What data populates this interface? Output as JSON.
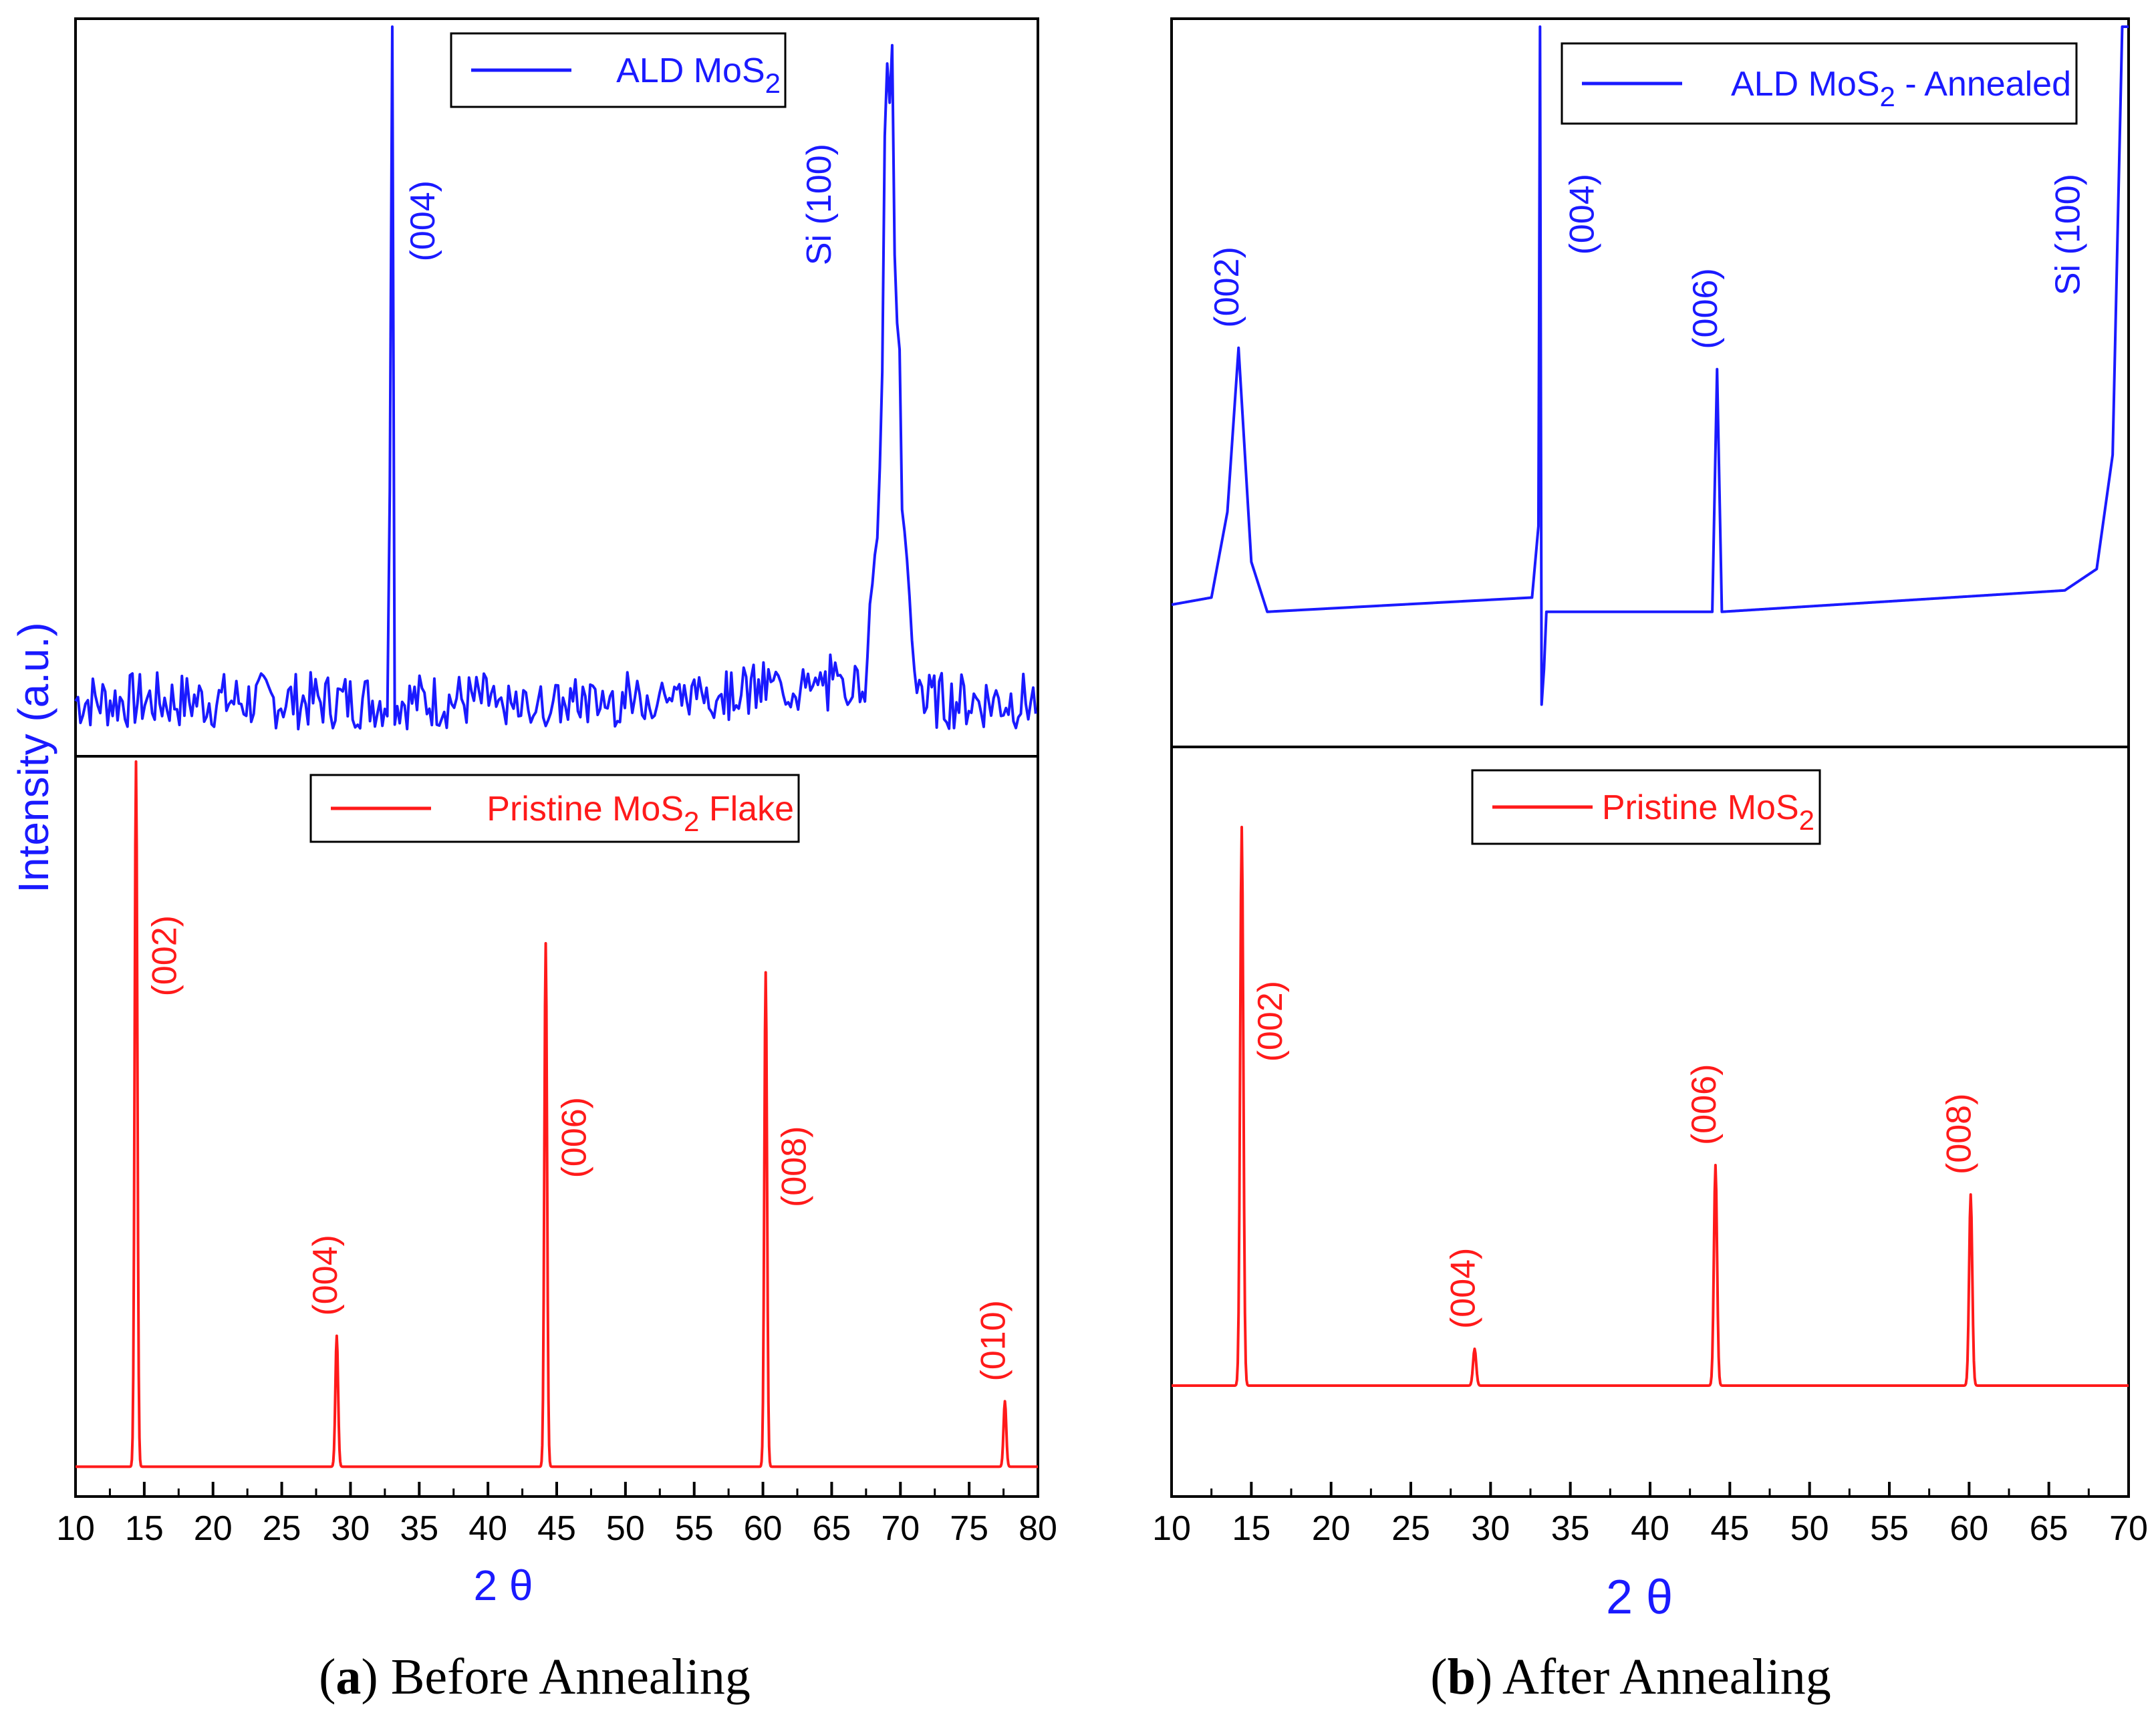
{
  "colors": {
    "blue": "#1a1aff",
    "red": "#ff1a1a",
    "axis": "#000000"
  },
  "panels": [
    {
      "caption_letter": "a",
      "caption_text": ") Before Annealing",
      "xlabel": "2 θ",
      "ylabel": "Intensity (a.u.)",
      "xticks": [
        "10",
        "15",
        "20",
        "25",
        "30",
        "35",
        "40",
        "45",
        "50",
        "55",
        "60",
        "65",
        "70",
        "75",
        "80"
      ]
    },
    {
      "caption_letter": "b",
      "caption_text": ") After Annealing",
      "xlabel": "2 θ",
      "ylabel": "",
      "xticks": [
        "10",
        "15",
        "20",
        "25",
        "30",
        "35",
        "40",
        "45",
        "50",
        "55",
        "60",
        "65",
        "70"
      ]
    }
  ],
  "chart_data": [
    {
      "type": "line",
      "panel": "a",
      "title": "ALD MoS2",
      "legend": {
        "label": "ALD MoS",
        "subscript": "2",
        "color": "#1a1aff",
        "placement": "top-center"
      },
      "xlabel": "2 θ",
      "ylabel": "Intensity (a.u.)",
      "xlim": [
        10,
        80
      ],
      "ylim": [
        0,
        100
      ],
      "baseline": 5,
      "noise": 5,
      "series": [
        {
          "name": "ALD MoS2",
          "x": [
            10,
            32.8,
            32.9,
            33.0,
            33.1,
            33.2,
            67.5,
            68.5,
            69.0,
            69.3,
            69.7,
            70.3,
            71,
            72,
            80
          ],
          "y": [
            5,
            5,
            60,
            100,
            60,
            5,
            10,
            40,
            100,
            100,
            70,
            30,
            12,
            6,
            5
          ]
        }
      ],
      "peaks": [
        {
          "label": "(004)",
          "x": 33.0,
          "y": 100
        },
        {
          "label": "Si (100)",
          "x": 69.3,
          "y": 100
        }
      ]
    },
    {
      "type": "line",
      "panel": "a",
      "title": "Pristine MoS2 Flake",
      "legend": {
        "label": "Pristine MoS",
        "subscript": "2",
        "suffix": " Flake",
        "color": "#ff1a1a",
        "placement": "top-center"
      },
      "xlabel": "2 θ",
      "ylabel": "Intensity (a.u.)",
      "xlim": [
        10,
        80
      ],
      "ylim": [
        0,
        100
      ],
      "baseline": 3,
      "series": [
        {
          "name": "Pristine MoS2 Flake",
          "x": [
            14.4,
            29.0,
            44.2,
            60.2,
            77.6
          ],
          "y": [
            100,
            21,
            75,
            71,
            12
          ]
        }
      ],
      "peaks": [
        {
          "label": "(002)",
          "x": 14.4,
          "y": 100
        },
        {
          "label": "(004)",
          "x": 29.0,
          "y": 21
        },
        {
          "label": "(006)",
          "x": 44.2,
          "y": 75
        },
        {
          "label": "(008)",
          "x": 60.2,
          "y": 71
        },
        {
          "label": "(010)",
          "x": 77.6,
          "y": 12
        }
      ]
    },
    {
      "type": "line",
      "panel": "b",
      "title": "ALD MoS2 - Annealed",
      "legend": {
        "label": "ALD MoS",
        "subscript": "2",
        "suffix": " - Annealed",
        "color": "#1a1aff",
        "placement": "top-right"
      },
      "xlabel": "2 θ",
      "ylabel": "",
      "xlim": [
        10,
        70
      ],
      "ylim": [
        0,
        100
      ],
      "baseline": 18,
      "series": [
        {
          "name": "ALD MoS2 - Annealed",
          "x": [
            10,
            12.5,
            13.5,
            14.2,
            15.0,
            16.0,
            32.6,
            33.0,
            33.1,
            33.2,
            33.35,
            33.5,
            34,
            43.9,
            44.2,
            44.5,
            66,
            68,
            69,
            69.6,
            70
          ],
          "y": [
            19,
            20,
            32,
            55,
            25,
            18,
            20,
            30,
            100,
            5,
            10,
            18,
            18,
            18,
            52,
            18,
            21,
            24,
            40,
            100,
            100
          ]
        }
      ],
      "peaks": [
        {
          "label": "(002)",
          "x": 14.2,
          "y": 55
        },
        {
          "label": "(004)",
          "x": 33.1,
          "y": 100
        },
        {
          "label": "(006)",
          "x": 44.2,
          "y": 52
        },
        {
          "label": "Si (100)",
          "x": 69.6,
          "y": 100
        }
      ]
    },
    {
      "type": "line",
      "panel": "b",
      "title": "Pristine MoS2",
      "legend": {
        "label": "Pristine MoS",
        "subscript": "2",
        "color": "#ff1a1a",
        "placement": "top-center"
      },
      "xlabel": "2 θ",
      "ylabel": "",
      "xlim": [
        10,
        70
      ],
      "ylim": [
        0,
        100
      ],
      "baseline": 14,
      "series": [
        {
          "name": "Pristine MoS2",
          "x": [
            14.4,
            29.0,
            44.1,
            60.1
          ],
          "y": [
            90,
            19,
            44,
            40
          ]
        }
      ],
      "peaks": [
        {
          "label": "(002)",
          "x": 14.4,
          "y": 90
        },
        {
          "label": "(004)",
          "x": 29.0,
          "y": 19
        },
        {
          "label": "(006)",
          "x": 44.1,
          "y": 44
        },
        {
          "label": "(008)",
          "x": 60.1,
          "y": 40
        }
      ]
    }
  ]
}
